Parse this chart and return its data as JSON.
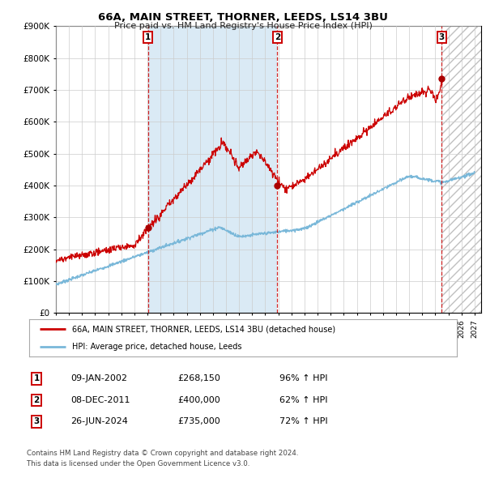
{
  "title": "66A, MAIN STREET, THORNER, LEEDS, LS14 3BU",
  "subtitle": "Price paid vs. HM Land Registry's House Price Index (HPI)",
  "ylim": [
    0,
    900000
  ],
  "yticks": [
    0,
    100000,
    200000,
    300000,
    400000,
    500000,
    600000,
    700000,
    800000,
    900000
  ],
  "ytick_labels": [
    "£0",
    "£100K",
    "£200K",
    "£300K",
    "£400K",
    "£500K",
    "£600K",
    "£700K",
    "£800K",
    "£900K"
  ],
  "xlim_start": 1995.0,
  "xlim_end": 2027.5,
  "hpi_color": "#7ab8d9",
  "price_color": "#cc0000",
  "shade_color": "#daeaf5",
  "sale1_date": 2002.03,
  "sale1_price": 268150,
  "sale2_date": 2011.93,
  "sale2_price": 400000,
  "sale3_date": 2024.49,
  "sale3_price": 735000,
  "legend_entry1": "66A, MAIN STREET, THORNER, LEEDS, LS14 3BU (detached house)",
  "legend_entry2": "HPI: Average price, detached house, Leeds",
  "table_rows": [
    [
      "1",
      "09-JAN-2002",
      "£268,150",
      "96% ↑ HPI"
    ],
    [
      "2",
      "08-DEC-2011",
      "£400,000",
      "62% ↑ HPI"
    ],
    [
      "3",
      "26-JUN-2024",
      "£735,000",
      "72% ↑ HPI"
    ]
  ],
  "footnote1": "Contains HM Land Registry data © Crown copyright and database right 2024.",
  "footnote2": "This data is licensed under the Open Government Licence v3.0.",
  "background_color": "#ffffff",
  "grid_color": "#cccccc",
  "future_shade_color": "#e8e8e8"
}
